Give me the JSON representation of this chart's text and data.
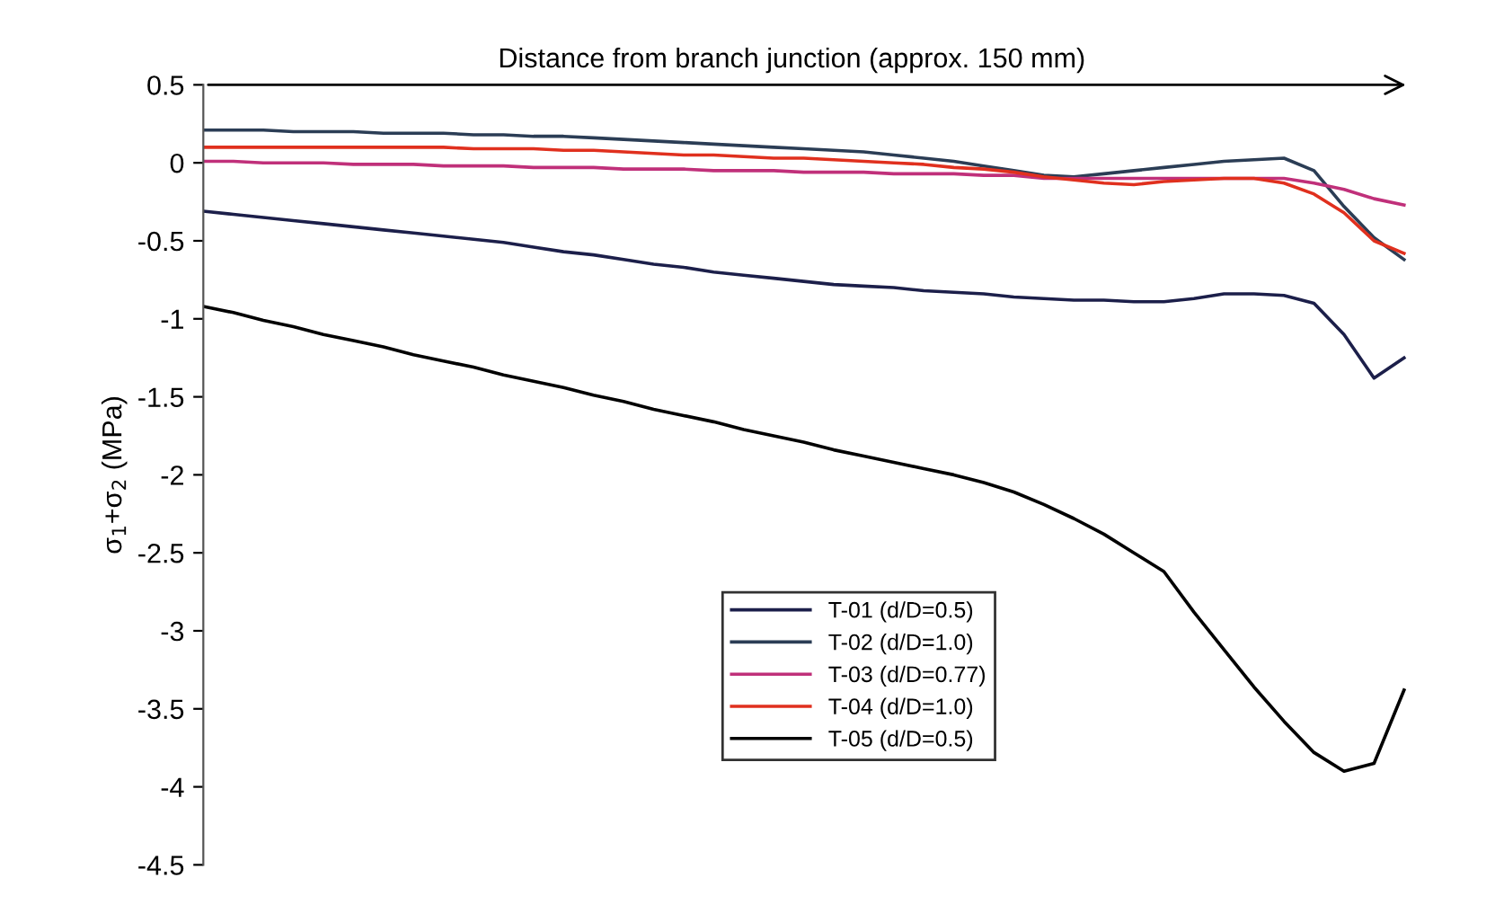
{
  "chart_data": {
    "type": "line",
    "ylabel": "σ$_{1}$+σ$_{2}$ (MPa)",
    "annotations": [
      "Distance from branch junction (approx. 150 mm)"
    ],
    "categories": [
      null,
      null,
      null,
      null,
      null,
      null,
      null,
      null,
      null,
      null,
      null,
      null,
      null,
      null,
      null,
      null,
      null,
      null,
      null,
      null,
      null,
      null,
      null,
      null,
      null,
      null,
      null,
      null,
      null,
      null,
      null,
      null,
      null,
      null,
      null,
      null,
      null,
      null,
      null,
      null,
      null
    ],
    "series": [
      {
        "name": "T-01 (d/D=0.5)",
        "color": "#1c1f4a",
        "values": [
          -0.31,
          -0.33,
          -0.35,
          -0.37,
          -0.39,
          -0.41,
          -0.43,
          -0.45,
          -0.47,
          -0.49,
          -0.51,
          -0.54,
          -0.57,
          -0.59,
          -0.62,
          -0.65,
          -0.67,
          -0.7,
          -0.72,
          -0.74,
          -0.76,
          -0.78,
          -0.79,
          -0.8,
          -0.82,
          -0.83,
          -0.84,
          -0.86,
          -0.87,
          -0.88,
          -0.88,
          -0.89,
          -0.89,
          -0.87,
          -0.84,
          -0.84,
          -0.85,
          -0.9,
          -1.1,
          -1.38,
          -1.25
        ]
      },
      {
        "name": "T-02 (d/D=1.0)",
        "color": "#2b3d55",
        "values": [
          0.21,
          0.21,
          0.21,
          0.2,
          0.2,
          0.2,
          0.19,
          0.19,
          0.19,
          0.18,
          0.18,
          0.17,
          0.17,
          0.16,
          0.15,
          0.14,
          0.13,
          0.12,
          0.11,
          0.1,
          0.09,
          0.08,
          0.07,
          0.05,
          0.03,
          0.01,
          -0.02,
          -0.05,
          -0.08,
          -0.09,
          -0.07,
          -0.05,
          -0.03,
          -0.01,
          0.01,
          0.02,
          0.03,
          -0.05,
          -0.28,
          -0.48,
          -0.62
        ]
      },
      {
        "name": "T-03 (d/D=0.77)",
        "color": "#c0307a",
        "values": [
          0.01,
          0.01,
          0.0,
          0.0,
          0.0,
          -0.01,
          -0.01,
          -0.01,
          -0.02,
          -0.02,
          -0.02,
          -0.03,
          -0.03,
          -0.03,
          -0.04,
          -0.04,
          -0.04,
          -0.05,
          -0.05,
          -0.05,
          -0.06,
          -0.06,
          -0.06,
          -0.07,
          -0.07,
          -0.07,
          -0.08,
          -0.08,
          -0.1,
          -0.1,
          -0.1,
          -0.1,
          -0.1,
          -0.1,
          -0.1,
          -0.1,
          -0.1,
          -0.13,
          -0.17,
          -0.23,
          -0.27
        ]
      },
      {
        "name": "T-04 (d/D=1.0)",
        "color": "#e0301e",
        "values": [
          0.1,
          0.1,
          0.1,
          0.1,
          0.1,
          0.1,
          0.1,
          0.1,
          0.1,
          0.09,
          0.09,
          0.09,
          0.08,
          0.08,
          0.07,
          0.06,
          0.05,
          0.05,
          0.04,
          0.03,
          0.03,
          0.02,
          0.01,
          0.0,
          -0.01,
          -0.03,
          -0.04,
          -0.06,
          -0.09,
          -0.11,
          -0.13,
          -0.14,
          -0.12,
          -0.11,
          -0.1,
          -0.1,
          -0.13,
          -0.2,
          -0.32,
          -0.5,
          -0.58
        ]
      },
      {
        "name": "T-05 (d/D=0.5)",
        "color": "#000000",
        "values": [
          -0.92,
          -0.96,
          -1.01,
          -1.05,
          -1.1,
          -1.14,
          -1.18,
          -1.23,
          -1.27,
          -1.31,
          -1.36,
          -1.4,
          -1.44,
          -1.49,
          -1.53,
          -1.58,
          -1.62,
          -1.66,
          -1.71,
          -1.75,
          -1.79,
          -1.84,
          -1.88,
          -1.92,
          -1.96,
          -2.0,
          -2.05,
          -2.11,
          -2.19,
          -2.28,
          -2.38,
          -2.5,
          -2.62,
          -2.88,
          -3.12,
          -3.36,
          -3.58,
          -3.78,
          -3.9,
          -3.85,
          -3.38
        ]
      }
    ],
    "ylim": [
      -4.5,
      0.5
    ],
    "yticks": [
      0.5,
      0,
      -0.5,
      -1,
      -1.5,
      -2,
      -2.5,
      -3,
      -3.5,
      -4,
      -4.5
    ],
    "tick_labels": "y",
    "legend": "bottom right",
    "marker": "none",
    "line_style": "solid"
  }
}
